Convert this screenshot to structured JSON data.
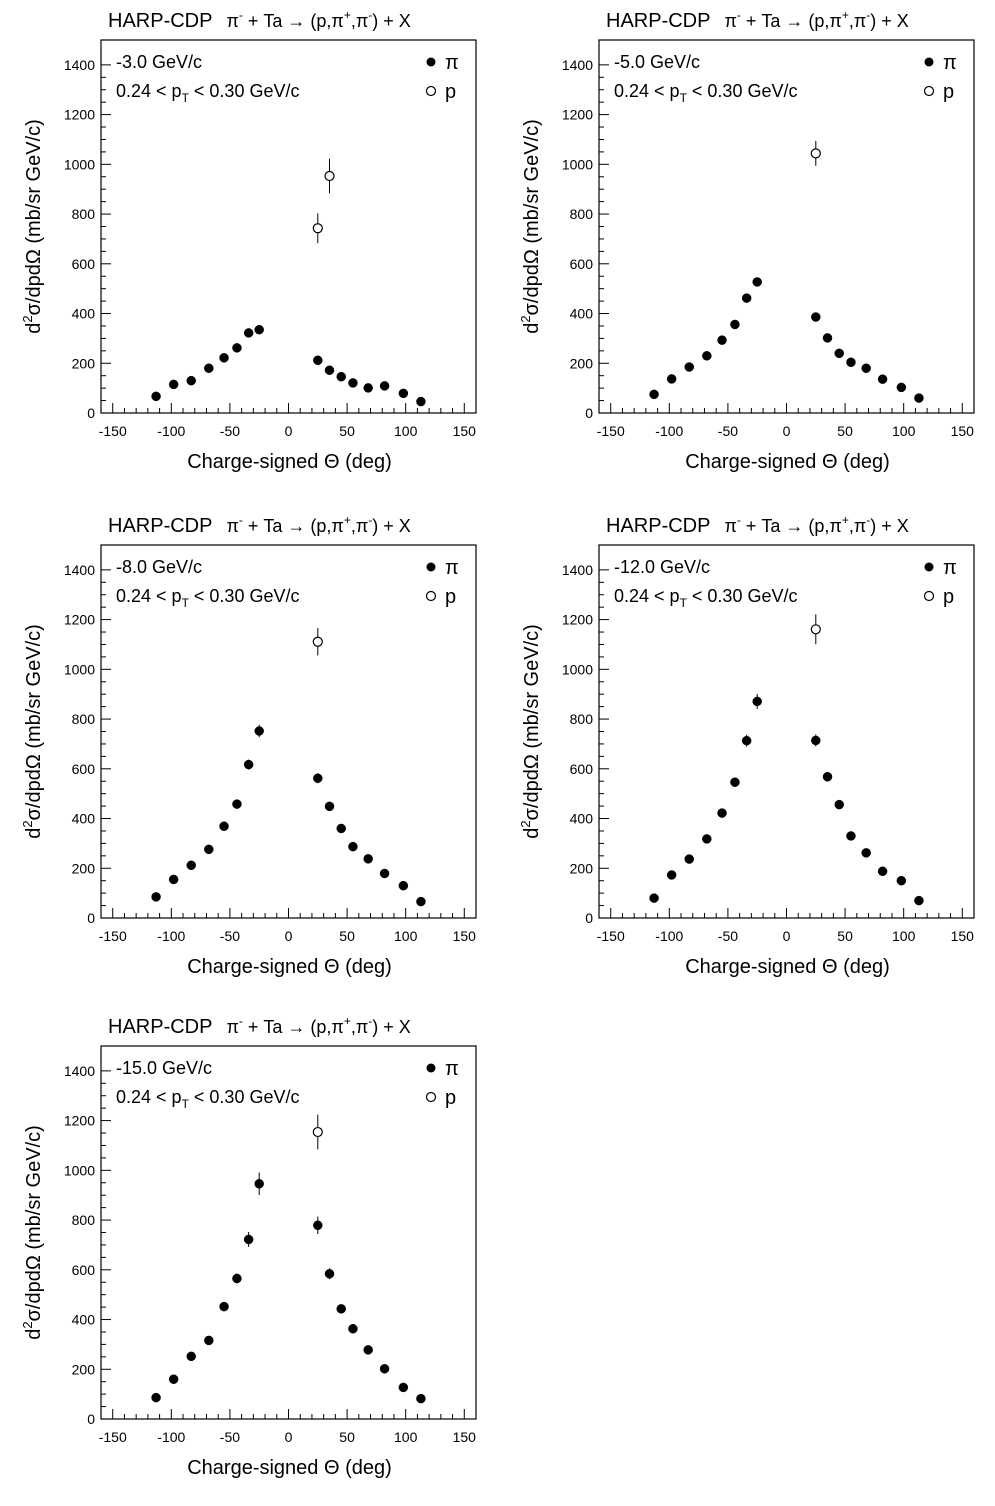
{
  "panel_title": {
    "left": "HARP-CDP",
    "reaction": "π⁻ + Ta → (p,π⁺,π⁻) + X"
  },
  "xlabel": "Charge-signed Θ (deg)",
  "ylabel": "d²σ/dpdΩ (mb/sr GeV/c)",
  "pt_range": "0.24 < pT < 0.30 GeV/c",
  "legend": {
    "pi": "π",
    "p": "p"
  },
  "chart_data": [
    {
      "type": "scatter",
      "momentum_label": "-3.0 GeV/c",
      "xlim": [
        -160,
        160
      ],
      "ylim": [
        0,
        1500
      ],
      "xticks": [
        -150,
        -100,
        -50,
        0,
        50,
        100,
        150
      ],
      "yticks": [
        0,
        200,
        400,
        600,
        800,
        1000,
        1200,
        1400
      ],
      "series": [
        {
          "name": "π",
          "marker": "filled",
          "points": [
            [
              -113,
              67,
              6
            ],
            [
              -98,
              115,
              7
            ],
            [
              -83,
              130,
              8
            ],
            [
              -68,
              180,
              9
            ],
            [
              -55,
              222,
              10
            ],
            [
              -44,
              262,
              11
            ],
            [
              -34,
              322,
              13
            ],
            [
              -25,
              335,
              14
            ],
            [
              25,
              212,
              10
            ],
            [
              35,
              172,
              8
            ],
            [
              45,
              146,
              7
            ],
            [
              55,
              121,
              6
            ],
            [
              68,
              101,
              6
            ],
            [
              82,
              109,
              6
            ],
            [
              98,
              79,
              5
            ],
            [
              113,
              46,
              4
            ]
          ]
        },
        {
          "name": "p",
          "marker": "open",
          "points": [
            [
              25,
              743,
              60
            ],
            [
              35,
              953,
              70
            ]
          ]
        }
      ]
    },
    {
      "type": "scatter",
      "momentum_label": "-5.0 GeV/c",
      "xlim": [
        -160,
        160
      ],
      "ylim": [
        0,
        1500
      ],
      "xticks": [
        -150,
        -100,
        -50,
        0,
        50,
        100,
        150
      ],
      "yticks": [
        0,
        200,
        400,
        600,
        800,
        1000,
        1200,
        1400
      ],
      "series": [
        {
          "name": "π",
          "marker": "filled",
          "points": [
            [
              -113,
              75,
              5
            ],
            [
              -98,
              137,
              7
            ],
            [
              -83,
              185,
              8
            ],
            [
              -68,
              230,
              9
            ],
            [
              -55,
              293,
              11
            ],
            [
              -44,
              356,
              13
            ],
            [
              -34,
              462,
              16
            ],
            [
              -25,
              527,
              18
            ],
            [
              25,
              386,
              14
            ],
            [
              35,
              302,
              12
            ],
            [
              45,
              240,
              10
            ],
            [
              55,
              204,
              9
            ],
            [
              68,
              180,
              8
            ],
            [
              82,
              136,
              7
            ],
            [
              98,
              103,
              6
            ],
            [
              113,
              60,
              5
            ]
          ]
        },
        {
          "name": "p",
          "marker": "open",
          "points": [
            [
              25,
              1044,
              50
            ]
          ]
        }
      ]
    },
    {
      "type": "scatter",
      "momentum_label": "-8.0 GeV/c",
      "xlim": [
        -160,
        160
      ],
      "ylim": [
        0,
        1500
      ],
      "xticks": [
        -150,
        -100,
        -50,
        0,
        50,
        100,
        150
      ],
      "yticks": [
        0,
        200,
        400,
        600,
        800,
        1000,
        1200,
        1400
      ],
      "series": [
        {
          "name": "π",
          "marker": "filled",
          "points": [
            [
              -113,
              85,
              5
            ],
            [
              -98,
              155,
              7
            ],
            [
              -83,
              212,
              8
            ],
            [
              -68,
              276,
              10
            ],
            [
              -55,
              369,
              12
            ],
            [
              -44,
              458,
              15
            ],
            [
              -34,
              617,
              20
            ],
            [
              -25,
              752,
              25
            ],
            [
              25,
              562,
              20
            ],
            [
              35,
              449,
              16
            ],
            [
              45,
              360,
              13
            ],
            [
              55,
              287,
              11
            ],
            [
              68,
              238,
              10
            ],
            [
              82,
              179,
              8
            ],
            [
              98,
              130,
              7
            ],
            [
              113,
              66,
              5
            ]
          ]
        },
        {
          "name": "p",
          "marker": "open",
          "points": [
            [
              25,
              1111,
              55
            ]
          ]
        }
      ]
    },
    {
      "type": "scatter",
      "momentum_label": "-12.0 GeV/c",
      "xlim": [
        -160,
        160
      ],
      "ylim": [
        0,
        1500
      ],
      "xticks": [
        -150,
        -100,
        -50,
        0,
        50,
        100,
        150
      ],
      "yticks": [
        0,
        200,
        400,
        600,
        800,
        1000,
        1200,
        1400
      ],
      "series": [
        {
          "name": "π",
          "marker": "filled",
          "points": [
            [
              -113,
              80,
              5
            ],
            [
              -98,
              173,
              7
            ],
            [
              -83,
              237,
              9
            ],
            [
              -68,
              318,
              11
            ],
            [
              -55,
              422,
              14
            ],
            [
              -44,
              546,
              18
            ],
            [
              -34,
              713,
              24
            ],
            [
              -25,
              871,
              30
            ],
            [
              25,
              714,
              24
            ],
            [
              35,
              568,
              19
            ],
            [
              45,
              456,
              16
            ],
            [
              55,
              330,
              12
            ],
            [
              68,
              262,
              10
            ],
            [
              82,
              188,
              8
            ],
            [
              98,
              150,
              7
            ],
            [
              113,
              70,
              5
            ]
          ]
        },
        {
          "name": "p",
          "marker": "open",
          "points": [
            [
              25,
              1161,
              60
            ]
          ]
        }
      ]
    },
    {
      "type": "scatter",
      "momentum_label": "-15.0 GeV/c",
      "xlim": [
        -160,
        160
      ],
      "ylim": [
        0,
        1500
      ],
      "xticks": [
        -150,
        -100,
        -50,
        0,
        50,
        100,
        150
      ],
      "yticks": [
        0,
        200,
        400,
        600,
        800,
        1000,
        1200,
        1400
      ],
      "series": [
        {
          "name": "π",
          "marker": "filled",
          "points": [
            [
              -113,
              86,
              5
            ],
            [
              -98,
              160,
              8
            ],
            [
              -83,
              252,
              10
            ],
            [
              -68,
              316,
              12
            ],
            [
              -55,
              452,
              16
            ],
            [
              -44,
              565,
              20
            ],
            [
              -34,
              722,
              30
            ],
            [
              -25,
              946,
              45
            ],
            [
              25,
              779,
              35
            ],
            [
              35,
              584,
              22
            ],
            [
              45,
              443,
              17
            ],
            [
              55,
              363,
              14
            ],
            [
              68,
              278,
              12
            ],
            [
              82,
              202,
              9
            ],
            [
              98,
              127,
              7
            ],
            [
              113,
              82,
              5
            ]
          ]
        },
        {
          "name": "p",
          "marker": "open",
          "points": [
            [
              25,
              1154,
              70
            ]
          ]
        }
      ]
    }
  ]
}
